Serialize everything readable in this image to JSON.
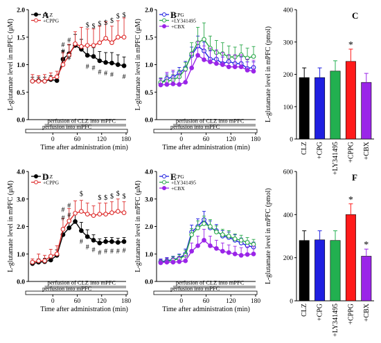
{
  "chart_data": [
    {
      "id": "A",
      "panel_label": "A",
      "type": "line",
      "ylabel": "L-glutamate level in mPFC (μM)",
      "xlabel": "Time after administration (min)",
      "ylim": [
        0,
        2.0
      ],
      "yticks": [
        "0.0",
        "0.5",
        "1.0",
        "1.5",
        "2.0"
      ],
      "xlim": [
        -60,
        180
      ],
      "xticks": [
        0,
        60,
        120,
        180
      ],
      "x": [
        -50,
        -35,
        -20,
        -5,
        10,
        25,
        40,
        55,
        70,
        85,
        100,
        115,
        130,
        145,
        160,
        175
      ],
      "series": [
        {
          "name": "CLZ",
          "color": "#000000",
          "filled": true,
          "values": [
            0.7,
            0.71,
            0.7,
            0.73,
            0.71,
            1.1,
            1.2,
            1.35,
            1.28,
            1.17,
            1.15,
            1.07,
            1.04,
            1.03,
            1.0,
            0.98
          ],
          "errors": [
            0.07,
            0.06,
            0.07,
            0.07,
            0.06,
            0.15,
            0.16,
            0.2,
            0.18,
            0.17,
            0.16,
            0.17,
            0.18,
            0.19,
            0.18,
            0.16
          ]
        },
        {
          "name": "+CPPG",
          "color": "#dd2a2a",
          "filled": false,
          "values": [
            0.7,
            0.7,
            0.7,
            0.75,
            0.78,
            1.0,
            1.17,
            1.38,
            1.33,
            1.35,
            1.35,
            1.4,
            1.48,
            1.4,
            1.5,
            1.5
          ],
          "errors": [
            0.12,
            0.1,
            0.12,
            0.1,
            0.1,
            0.22,
            0.2,
            0.22,
            0.35,
            0.3,
            0.3,
            0.3,
            0.3,
            0.3,
            0.3,
            0.35
          ]
        }
      ],
      "annotations": [
        {
          "text": "#",
          "x": 25,
          "y": 1.36
        },
        {
          "text": "#",
          "x": 40,
          "y": 1.44
        },
        {
          "text": "#",
          "x": 25,
          "y": 1.24
        },
        {
          "text": "#",
          "x": 40,
          "y": 1.12
        },
        {
          "text": "#",
          "x": 85,
          "y": 0.96
        },
        {
          "text": "#",
          "x": 100,
          "y": 0.94
        },
        {
          "text": "#",
          "x": 115,
          "y": 0.86
        },
        {
          "text": "#",
          "x": 130,
          "y": 0.84
        },
        {
          "text": "#",
          "x": 145,
          "y": 0.82
        },
        {
          "text": "#",
          "x": 175,
          "y": 0.78
        },
        {
          "text": "$",
          "x": 85,
          "y": 1.72
        },
        {
          "text": "$",
          "x": 100,
          "y": 1.7
        },
        {
          "text": "$",
          "x": 115,
          "y": 1.74
        },
        {
          "text": "$",
          "x": 130,
          "y": 1.76
        },
        {
          "text": "$",
          "x": 145,
          "y": 1.8
        },
        {
          "text": "$",
          "x": 160,
          "y": 1.88
        },
        {
          "text": "$",
          "x": 175,
          "y": 1.9
        }
      ],
      "bars": [
        {
          "label": "perfusion of CLZ into mPFC",
          "x0": -20,
          "x1": 180,
          "shade": true
        },
        {
          "label": "perfusion into mPFC",
          "x0": -60,
          "x1": 180,
          "shade": false
        }
      ],
      "legend_position": "top-left"
    },
    {
      "id": "B",
      "panel_label": "B",
      "type": "line",
      "ylabel": "L-glutamate level in mPFC (μM)",
      "xlabel": "Time after administration (min)",
      "ylim": [
        0,
        2.0
      ],
      "yticks": [
        "0.0",
        "0.5",
        "1.0",
        "1.5",
        "2.0"
      ],
      "xlim": [
        -60,
        180
      ],
      "xticks": [
        0,
        60,
        120,
        180
      ],
      "x": [
        -50,
        -35,
        -20,
        -5,
        10,
        25,
        40,
        55,
        70,
        85,
        100,
        115,
        130,
        145,
        160,
        175
      ],
      "series": [
        {
          "name": "+CPG",
          "color": "#1f1fe0",
          "filled": false,
          "values": [
            0.66,
            0.75,
            0.77,
            0.85,
            0.94,
            1.17,
            1.34,
            1.25,
            1.1,
            1.1,
            1.02,
            1.06,
            1.02,
            1.02,
            0.93,
            0.95
          ],
          "errors": [
            0.08,
            0.08,
            0.1,
            0.1,
            0.12,
            0.15,
            0.18,
            0.16,
            0.15,
            0.14,
            0.12,
            0.12,
            0.12,
            0.12,
            0.12,
            0.1
          ]
        },
        {
          "name": "+LY341495",
          "color": "#2aa84a",
          "filled": false,
          "values": [
            0.68,
            0.7,
            0.72,
            0.78,
            0.92,
            1.2,
            1.4,
            1.46,
            1.3,
            1.22,
            1.2,
            1.14,
            1.14,
            1.18,
            1.12,
            1.15
          ],
          "errors": [
            0.08,
            0.1,
            0.1,
            0.12,
            0.12,
            0.2,
            0.28,
            0.3,
            0.22,
            0.22,
            0.2,
            0.2,
            0.18,
            0.18,
            0.18,
            0.18
          ]
        },
        {
          "name": "+CBX",
          "color": "#9a25e8",
          "filled": true,
          "values": [
            0.63,
            0.64,
            0.65,
            0.64,
            0.68,
            0.94,
            1.17,
            1.09,
            1.05,
            1.02,
            1.0,
            0.96,
            0.96,
            0.96,
            0.9,
            0.88
          ],
          "errors": [
            0.12,
            0.22,
            0.25,
            0.2,
            0.2,
            0.28,
            0.25,
            0.25,
            0.25,
            0.25,
            0.22,
            0.22,
            0.22,
            0.22,
            0.2,
            0.2
          ]
        }
      ],
      "annotations": [],
      "bars": [
        {
          "label": "perfusion of CLZ into mPFC",
          "x0": -20,
          "x1": 180,
          "shade": true
        },
        {
          "label": "perfusion into mPFC",
          "x0": -60,
          "x1": 180,
          "shade": false
        }
      ],
      "legend_position": "top-left"
    },
    {
      "id": "C",
      "panel_label": "C",
      "type": "bar",
      "ylabel": "L-glutamate level in mPFC (pmol)",
      "xlabel": "",
      "ylim": [
        0,
        400
      ],
      "yticks": [
        "0",
        "100",
        "200",
        "300",
        "400"
      ],
      "categories": [
        "CLZ",
        "+CPG",
        "+LY341495",
        "+CPPG",
        "+CBX"
      ],
      "values": [
        190,
        190,
        210,
        240,
        175
      ],
      "errors": [
        30,
        30,
        32,
        38,
        28
      ],
      "colors": [
        "#000000",
        "#1f1fe0",
        "#22b050",
        "#ff1a1a",
        "#9a25e8"
      ],
      "stars": [
        "",
        "",
        "",
        "*",
        ""
      ]
    },
    {
      "id": "D",
      "panel_label": "D",
      "type": "line",
      "ylabel": "L-glutamate level in mPFC (μM)",
      "xlabel": "Time after administration (min)",
      "ylim": [
        0,
        4.0
      ],
      "yticks": [
        "0.0",
        "1.0",
        "2.0",
        "3.0",
        "4.0"
      ],
      "xlim": [
        -60,
        180
      ],
      "xticks": [
        0,
        60,
        120,
        180
      ],
      "x": [
        -50,
        -35,
        -20,
        -5,
        10,
        25,
        40,
        55,
        70,
        85,
        100,
        115,
        130,
        145,
        160,
        175
      ],
      "series": [
        {
          "name": "CLZ",
          "color": "#000000",
          "filled": true,
          "values": [
            0.65,
            0.7,
            0.72,
            0.78,
            0.95,
            1.7,
            1.95,
            2.18,
            1.85,
            1.63,
            1.5,
            1.4,
            1.45,
            1.45,
            1.42,
            1.45
          ],
          "errors": [
            0.1,
            0.12,
            0.12,
            0.15,
            0.2,
            0.25,
            0.3,
            0.35,
            0.3,
            0.25,
            0.2,
            0.15,
            0.15,
            0.15,
            0.15,
            0.15
          ]
        },
        {
          "name": "+CPPG",
          "color": "#dd2a2a",
          "filled": false,
          "values": [
            0.7,
            0.75,
            0.75,
            0.92,
            1.0,
            1.9,
            2.2,
            2.48,
            2.55,
            2.45,
            2.4,
            2.45,
            2.45,
            2.5,
            2.55,
            2.5
          ],
          "errors": [
            0.12,
            0.25,
            0.2,
            0.25,
            0.3,
            0.4,
            0.45,
            0.45,
            0.4,
            0.4,
            0.35,
            0.4,
            0.4,
            0.4,
            0.45,
            0.4
          ]
        }
      ],
      "annotations": [
        {
          "text": "#",
          "x": 25,
          "y": 2.6
        },
        {
          "text": "#",
          "x": 40,
          "y": 2.75
        },
        {
          "text": "#",
          "x": 25,
          "y": 2.3
        },
        {
          "text": "#",
          "x": 40,
          "y": 2.4
        },
        {
          "text": "#",
          "x": 70,
          "y": 1.45
        },
        {
          "text": "#",
          "x": 85,
          "y": 1.25
        },
        {
          "text": "#",
          "x": 100,
          "y": 1.15
        },
        {
          "text": "#",
          "x": 115,
          "y": 1.05
        },
        {
          "text": "#",
          "x": 130,
          "y": 1.1
        },
        {
          "text": "#",
          "x": 145,
          "y": 1.1
        },
        {
          "text": "#",
          "x": 160,
          "y": 1.1
        },
        {
          "text": "#",
          "x": 175,
          "y": 1.12
        },
        {
          "text": "$",
          "x": 70,
          "y": 3.18
        },
        {
          "text": "$",
          "x": 115,
          "y": 3.05
        },
        {
          "text": "$",
          "x": 130,
          "y": 3.05
        },
        {
          "text": "$",
          "x": 145,
          "y": 3.1
        },
        {
          "text": "$",
          "x": 160,
          "y": 3.2
        },
        {
          "text": "$",
          "x": 175,
          "y": 3.1
        }
      ],
      "bars": [
        {
          "label": "perfusion of CLZ into mPFC",
          "x0": -20,
          "x1": 180,
          "shade": true
        },
        {
          "label": "perfusion into mPFC",
          "x0": -60,
          "x1": 180,
          "shade": false
        }
      ],
      "legend_position": "top-left"
    },
    {
      "id": "E",
      "panel_label": "E",
      "type": "line",
      "ylabel": "L-glutamate level in mPFC (μM)",
      "xlabel": "Time after administration (min)",
      "ylim": [
        0,
        4.0
      ],
      "yticks": [
        "0.0",
        "1.0",
        "2.0",
        "3.0",
        "4.0"
      ],
      "xlim": [
        -60,
        180
      ],
      "xticks": [
        0,
        60,
        120,
        180
      ],
      "x": [
        -50,
        -35,
        -20,
        -5,
        10,
        25,
        40,
        55,
        70,
        85,
        100,
        115,
        130,
        145,
        160,
        175
      ],
      "series": [
        {
          "name": "+CPG",
          "color": "#1f1fe0",
          "filled": false,
          "values": [
            0.72,
            0.75,
            0.8,
            0.85,
            1.0,
            1.8,
            2.0,
            2.25,
            1.95,
            1.85,
            1.65,
            1.6,
            1.5,
            1.4,
            1.3,
            1.25
          ],
          "errors": [
            0.1,
            0.12,
            0.12,
            0.15,
            0.18,
            0.25,
            0.28,
            0.3,
            0.25,
            0.22,
            0.2,
            0.2,
            0.2,
            0.18,
            0.18,
            0.18
          ]
        },
        {
          "name": "+LY341495",
          "color": "#2aa84a",
          "filled": false,
          "values": [
            0.7,
            0.72,
            0.78,
            0.82,
            0.95,
            1.7,
            1.95,
            2.1,
            2.0,
            1.8,
            1.7,
            1.65,
            1.55,
            1.5,
            1.42,
            1.35
          ],
          "errors": [
            0.1,
            0.12,
            0.12,
            0.15,
            0.18,
            0.22,
            0.25,
            0.28,
            0.25,
            0.22,
            0.2,
            0.2,
            0.18,
            0.18,
            0.18,
            0.18
          ]
        },
        {
          "name": "+CBX",
          "color": "#9a25e8",
          "filled": true,
          "values": [
            0.68,
            0.7,
            0.7,
            0.72,
            0.75,
            1.1,
            1.3,
            1.5,
            1.3,
            1.2,
            1.1,
            1.05,
            1.0,
            0.95,
            0.98,
            1.0
          ],
          "errors": [
            0.12,
            0.15,
            0.15,
            0.18,
            0.2,
            0.3,
            0.35,
            0.4,
            0.35,
            0.3,
            0.3,
            0.28,
            0.28,
            0.28,
            0.28,
            0.28
          ]
        }
      ],
      "annotations": [],
      "bars": [
        {
          "label": "perfusion of CLZ into mPFC",
          "x0": -20,
          "x1": 180,
          "shade": true
        },
        {
          "label": "perfusion into mPFC",
          "x0": -60,
          "x1": 180,
          "shade": false
        }
      ],
      "legend_position": "top-left"
    },
    {
      "id": "F",
      "panel_label": "F",
      "type": "bar",
      "ylabel": "L-glutamate level in mPFC (pmol)",
      "xlabel": "",
      "ylim": [
        0,
        600
      ],
      "yticks": [
        "0",
        "200",
        "400",
        "600"
      ],
      "categories": [
        "CLZ",
        "+CPG",
        "+LY341495",
        "+CPPG",
        "+CBX"
      ],
      "values": [
        280,
        283,
        280,
        400,
        207
      ],
      "errors": [
        45,
        42,
        45,
        50,
        33
      ],
      "colors": [
        "#000000",
        "#1f1fe0",
        "#22b050",
        "#ff1a1a",
        "#9a25e8"
      ],
      "stars": [
        "",
        "",
        "",
        "*",
        "*"
      ]
    }
  ]
}
